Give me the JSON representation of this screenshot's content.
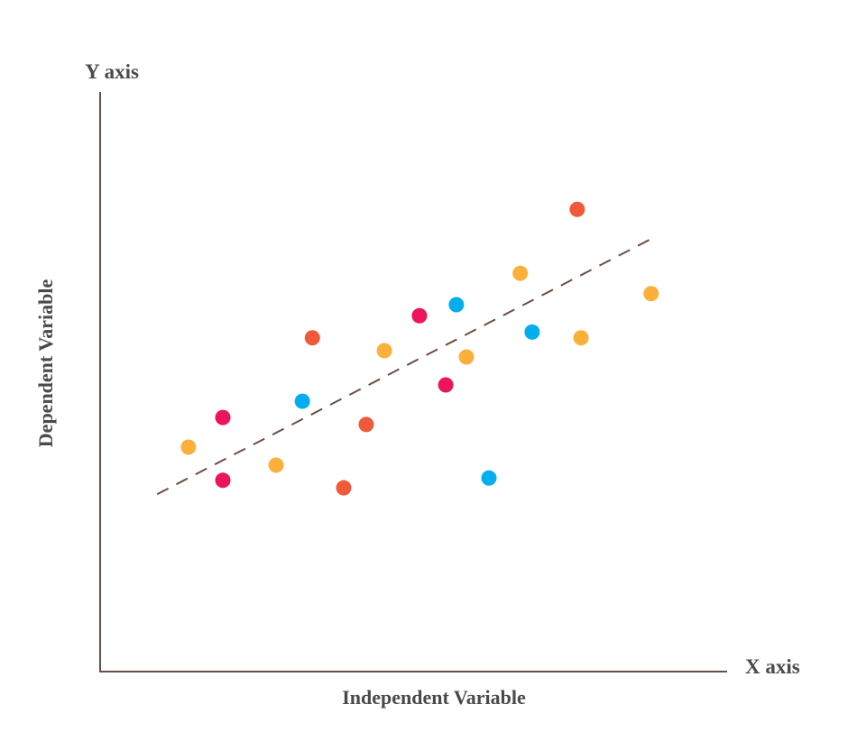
{
  "chart_data": {
    "type": "scatter",
    "title": "",
    "y_axis_name": "Y axis",
    "x_axis_name": "X axis",
    "xlabel": "Independent Variable",
    "ylabel": "Dependent Variable",
    "xlim": [
      0,
      100
    ],
    "ylim": [
      0,
      100
    ],
    "grid": false,
    "axis_color": "#6b4e44",
    "series": [
      {
        "name": "orange",
        "color": "#FBB03B",
        "points": [
          [
            14.1,
            38.6
          ],
          [
            28.1,
            35.5
          ],
          [
            45.4,
            55.2
          ],
          [
            58.5,
            54.1
          ],
          [
            67.1,
            68.5
          ],
          [
            76.8,
            57.4
          ],
          [
            88.0,
            65.0
          ]
        ]
      },
      {
        "name": "red",
        "color": "#F15A38",
        "points": [
          [
            33.9,
            57.4
          ],
          [
            42.5,
            42.5
          ],
          [
            38.9,
            31.6
          ],
          [
            76.2,
            79.5
          ]
        ]
      },
      {
        "name": "pink",
        "color": "#EC145A",
        "points": [
          [
            19.6,
            43.7
          ],
          [
            19.6,
            32.9
          ],
          [
            51.0,
            61.2
          ],
          [
            55.2,
            49.3
          ]
        ]
      },
      {
        "name": "blue",
        "color": "#03AEEF",
        "points": [
          [
            32.3,
            46.5
          ],
          [
            56.9,
            63.1
          ],
          [
            69.0,
            58.4
          ],
          [
            62.1,
            33.3
          ]
        ]
      }
    ],
    "trendline": {
      "style": "dashed",
      "color": "#6b4e44",
      "from": [
        9.1,
        30.5
      ],
      "to": [
        87.8,
        74.3
      ]
    }
  }
}
